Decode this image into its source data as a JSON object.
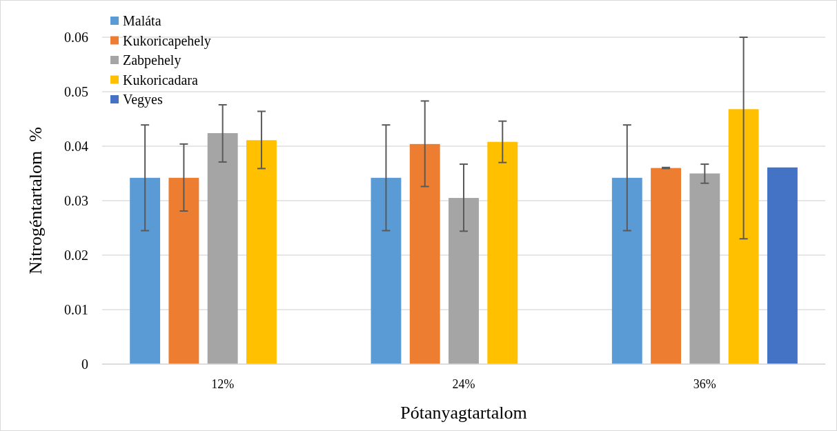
{
  "chart_data": {
    "type": "bar",
    "xlabel": "Pótanyagtartalom",
    "ylabel": "Nitrogéntartalom  %",
    "categories": [
      "12%",
      "24%",
      "36%"
    ],
    "series": [
      {
        "name": "Maláta",
        "color": "#5b9bd5",
        "values": [
          0.0342,
          0.0342,
          0.0342
        ],
        "errors": [
          0.0097,
          0.0097,
          0.0097
        ]
      },
      {
        "name": "Kukoricapehely",
        "color": "#ed7d31",
        "values": [
          0.0342,
          0.0404,
          0.036
        ],
        "errors": [
          [
            0.0281,
            0.0404
          ],
          [
            0.0326,
            0.0483
          ],
          [
            0.0359,
            0.0361
          ]
        ]
      },
      {
        "name": "Zabpehely",
        "color": "#a5a5a5",
        "values": [
          0.0424,
          0.0305,
          0.035
        ],
        "errors": [
          [
            0.0371,
            0.0476
          ],
          [
            0.0244,
            0.0367
          ],
          [
            0.0332,
            0.0367
          ]
        ]
      },
      {
        "name": "Kukoricadara",
        "color": "#ffc000",
        "values": [
          0.0411,
          0.0408,
          0.0468
        ],
        "errors": [
          [
            0.0359,
            0.0464
          ],
          [
            0.037,
            0.0446
          ],
          [
            0.023,
            0.06
          ]
        ]
      },
      {
        "name": "Vegyes",
        "color": "#4472c4",
        "values": [
          null,
          null,
          0.0361
        ]
      }
    ],
    "ylim": [
      0,
      0.06
    ],
    "yticks": [
      0,
      0.01,
      0.02,
      0.03,
      0.04,
      0.05,
      0.06
    ],
    "grid": "y",
    "legend": "top left"
  }
}
